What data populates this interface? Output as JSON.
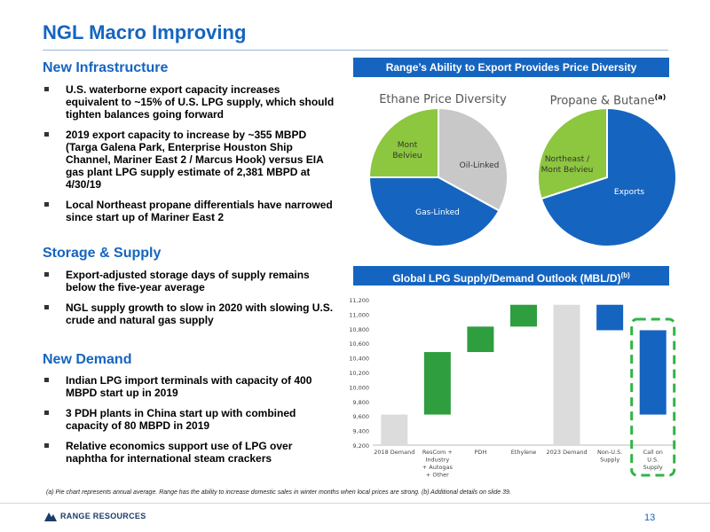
{
  "title": "NGL Macro Improving",
  "sections": {
    "infrastructure": {
      "heading": "New Infrastructure",
      "bullets": [
        "U.S. waterborne export capacity increases equivalent to ~15% of U.S. LPG supply, which should tighten balances going forward",
        "2019 export capacity to increase by ~355 MBPD (Targa Galena Park, Enterprise Houston Ship Channel, Mariner East 2 / Marcus Hook) versus EIA gas plant LPG supply estimate of 2,381 MBPD at 4/30/19",
        "Local Northeast propane differentials have narrowed since start up of Mariner East 2"
      ]
    },
    "storage": {
      "heading": "Storage & Supply",
      "bullets": [
        "Export-adjusted storage days of supply remains below the five-year average",
        "NGL supply growth to slow in 2020 with slowing U.S. crude and natural gas supply"
      ]
    },
    "demand": {
      "heading": "New Demand",
      "bullets": [
        "Indian LPG import terminals with capacity of 400 MBPD start up in 2019",
        "3 PDH plants in China start up with combined capacity of 80 MBPD in 2019",
        "Relative economics support use of LPG over naphtha for international steam crackers"
      ]
    }
  },
  "export_banner": "Range’s Ability to Export Provides Price Diversity",
  "outlook_banner": {
    "text": "Global LPG Supply/Demand Outlook (MBL/D)",
    "sup": "(b)"
  },
  "colors": {
    "blue": "#1565c0",
    "green": "#8dc63f",
    "gray": "#c8c8c8",
    "light_gray": "#dcdcdc"
  },
  "chart_data": [
    {
      "type": "pie",
      "title": "Ethane Price Diversity",
      "slices": [
        {
          "label": "Oil-Linked",
          "value": 0.33,
          "color": "#c8c8c8"
        },
        {
          "label": "Gas-Linked",
          "value": 0.42,
          "color": "#1565c0"
        },
        {
          "label": "Mont Belvieu",
          "value": 0.25,
          "color": "#8dc63f"
        }
      ]
    },
    {
      "type": "pie",
      "title": "Propane & Butane",
      "title_sup": "(a)",
      "slices": [
        {
          "label": "Exports",
          "value": 0.7,
          "color": "#1565c0"
        },
        {
          "label": "Northeast / Mont Belvieu",
          "value": 0.3,
          "color": "#8dc63f"
        }
      ]
    },
    {
      "type": "bar",
      "subtype": "waterfall",
      "categories": [
        "2018 Demand",
        "ResCom + Industry + Autogas + Other",
        "PDH",
        "Ethylene",
        "2023 Demand",
        "Non-U.S. Supply",
        "Call on U.S. Supply"
      ],
      "bars": [
        {
          "low": 9200,
          "high": 9620,
          "color": "#dcdcdc"
        },
        {
          "low": 9620,
          "high": 10480,
          "color": "#2e9e3e"
        },
        {
          "low": 10480,
          "high": 10830,
          "color": "#2e9e3e"
        },
        {
          "low": 10830,
          "high": 11130,
          "color": "#2e9e3e"
        },
        {
          "low": 9200,
          "high": 11130,
          "color": "#dcdcdc"
        },
        {
          "low": 10780,
          "high": 11130,
          "color": "#1565c0"
        },
        {
          "low": 9620,
          "high": 10780,
          "color": "#1565c0"
        }
      ],
      "highlight_category": "Call on U.S. Supply",
      "yticks": [
        "9,200",
        "9,400",
        "9,600",
        "9,800",
        "10,000",
        "10,200",
        "10,400",
        "10,600",
        "10,800",
        "11,000",
        "11,200"
      ],
      "ylim": [
        9200,
        11200
      ]
    }
  ],
  "footnote": "(a) Pie chart represents annual average. Range has the ability to increase domestic sales in winter months when local prices are strong. (b) Additional details on slide 39.",
  "logo_text": "RANGE RESOURCES",
  "page_number": "13"
}
